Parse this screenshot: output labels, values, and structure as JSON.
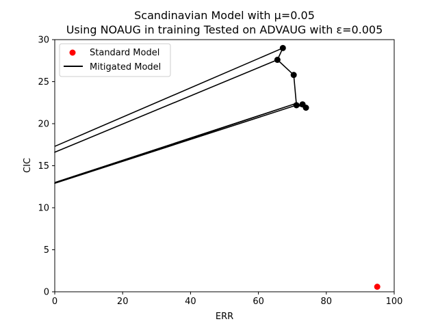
{
  "chart_data": {
    "type": "scatter",
    "title": "Scandinavian Model with μ=0.05",
    "subtitle": "Using NOAUG in training Tested on ADVAUG with ε=0.005",
    "xlabel": "ERR",
    "ylabel": "CIC",
    "xlim": [
      0,
      100
    ],
    "ylim": [
      0,
      30
    ],
    "xticks": [
      0,
      20,
      40,
      60,
      80,
      100
    ],
    "yticks": [
      0,
      5,
      10,
      15,
      20,
      25,
      30
    ],
    "grid": false,
    "legend_position": "top-left",
    "series": [
      {
        "name": "Standard Model",
        "kind": "scatter",
        "color": "#ff0000",
        "points": [
          [
            95.0,
            0.6
          ]
        ]
      },
      {
        "name": "Mitigated Model",
        "kind": "line",
        "color": "#000000",
        "points": [
          [
            0,
            17.3
          ],
          [
            67.2,
            29.0
          ],
          [
            65.6,
            27.6
          ],
          [
            0,
            16.6
          ],
          [
            65.6,
            27.6
          ],
          [
            70.4,
            25.8
          ],
          [
            71.2,
            22.2
          ],
          [
            73.0,
            22.3
          ],
          [
            74.0,
            21.9
          ],
          [
            71.2,
            22.2
          ],
          [
            0,
            12.9
          ],
          [
            71.0,
            22.4
          ],
          [
            0,
            13.0
          ]
        ],
        "markers": [
          [
            67.2,
            29.0
          ],
          [
            65.6,
            27.6
          ],
          [
            70.4,
            25.8
          ],
          [
            71.2,
            22.2
          ],
          [
            73.0,
            22.3
          ],
          [
            74.0,
            21.9
          ]
        ]
      }
    ]
  }
}
